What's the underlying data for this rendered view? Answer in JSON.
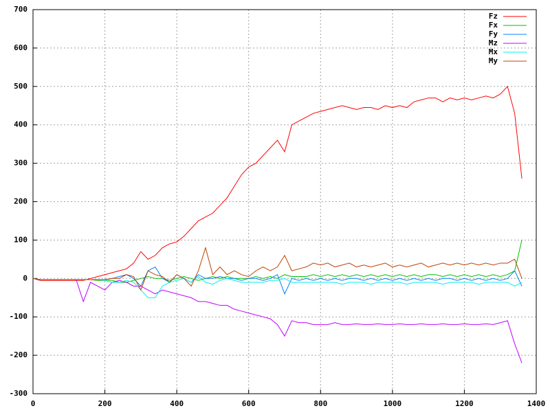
{
  "chart_data": {
    "type": "line",
    "x": [
      0,
      20,
      40,
      60,
      80,
      100,
      120,
      140,
      160,
      180,
      200,
      220,
      240,
      260,
      280,
      300,
      320,
      340,
      360,
      380,
      400,
      420,
      440,
      460,
      480,
      500,
      520,
      540,
      560,
      580,
      600,
      620,
      640,
      660,
      680,
      700,
      720,
      740,
      760,
      780,
      800,
      820,
      840,
      860,
      880,
      900,
      920,
      940,
      960,
      980,
      1000,
      1020,
      1040,
      1060,
      1080,
      1100,
      1120,
      1140,
      1160,
      1180,
      1200,
      1220,
      1240,
      1260,
      1280,
      1300,
      1320,
      1340,
      1360
    ],
    "series": [
      {
        "name": "Fz",
        "color": "#ff0000",
        "values": [
          0,
          -5,
          -5,
          -5,
          -5,
          -5,
          -5,
          -5,
          0,
          5,
          10,
          15,
          20,
          25,
          40,
          70,
          50,
          60,
          80,
          90,
          95,
          110,
          130,
          150,
          160,
          170,
          190,
          210,
          240,
          270,
          290,
          300,
          320,
          340,
          360,
          330,
          400,
          410,
          420,
          430,
          435,
          440,
          445,
          450,
          445,
          440,
          445,
          445,
          440,
          450,
          445,
          450,
          445,
          460,
          465,
          470,
          470,
          460,
          470,
          465,
          470,
          465,
          470,
          475,
          470,
          480,
          500,
          430,
          260
        ]
      },
      {
        "name": "Fx",
        "color": "#00c000",
        "values": [
          0,
          -3,
          -3,
          -3,
          -3,
          -3,
          -3,
          -3,
          -3,
          -5,
          -5,
          -5,
          -10,
          -10,
          -5,
          0,
          5,
          0,
          0,
          -5,
          0,
          5,
          0,
          -5,
          0,
          5,
          0,
          5,
          0,
          0,
          0,
          5,
          0,
          5,
          0,
          10,
          5,
          5,
          5,
          10,
          5,
          10,
          5,
          10,
          5,
          10,
          5,
          10,
          5,
          10,
          5,
          10,
          5,
          10,
          5,
          10,
          10,
          5,
          10,
          5,
          10,
          5,
          10,
          5,
          10,
          5,
          10,
          20,
          100
        ]
      },
      {
        "name": "Fy",
        "color": "#0080ff",
        "values": [
          0,
          -3,
          -3,
          -3,
          -3,
          -3,
          -3,
          -3,
          -3,
          -3,
          -3,
          0,
          5,
          10,
          0,
          -20,
          20,
          30,
          0,
          -10,
          10,
          0,
          -10,
          10,
          0,
          0,
          5,
          0,
          0,
          -5,
          0,
          0,
          -5,
          0,
          10,
          -40,
          0,
          -5,
          0,
          -5,
          0,
          -5,
          0,
          -5,
          0,
          0,
          -5,
          0,
          -5,
          0,
          -5,
          0,
          -5,
          0,
          -5,
          0,
          -5,
          0,
          0,
          -5,
          0,
          -5,
          0,
          -5,
          0,
          -5,
          0,
          20,
          -20
        ]
      },
      {
        "name": "Mz",
        "color": "#c000ff",
        "values": [
          0,
          -3,
          -3,
          -3,
          -3,
          -3,
          -3,
          -60,
          -10,
          -20,
          -30,
          -10,
          -5,
          -10,
          -20,
          -20,
          -30,
          -40,
          -30,
          -35,
          -40,
          -45,
          -50,
          -60,
          -60,
          -65,
          -70,
          -70,
          -80,
          -85,
          -90,
          -95,
          -100,
          -105,
          -120,
          -150,
          -110,
          -115,
          -115,
          -120,
          -120,
          -120,
          -115,
          -120,
          -120,
          -118,
          -120,
          -120,
          -118,
          -120,
          -120,
          -118,
          -120,
          -120,
          -118,
          -120,
          -120,
          -118,
          -120,
          -120,
          -118,
          -120,
          -120,
          -118,
          -120,
          -115,
          -110,
          -170,
          -220
        ]
      },
      {
        "name": "Mx",
        "color": "#00eeee",
        "values": [
          0,
          -3,
          -3,
          -3,
          -3,
          -3,
          -3,
          -3,
          -3,
          -3,
          -5,
          -10,
          -10,
          -5,
          -10,
          -30,
          -50,
          -50,
          -20,
          -10,
          -5,
          0,
          -10,
          5,
          -10,
          -15,
          -5,
          0,
          -5,
          -10,
          -10,
          -10,
          -10,
          -5,
          -5,
          0,
          -10,
          -10,
          -10,
          -10,
          -10,
          -10,
          -10,
          -15,
          -10,
          -10,
          -10,
          -15,
          -10,
          -10,
          -10,
          -10,
          -15,
          -10,
          -10,
          -10,
          -10,
          -15,
          -10,
          -10,
          -10,
          -10,
          -15,
          -10,
          -10,
          -10,
          -10,
          -20,
          -10
        ]
      },
      {
        "name": "My",
        "color": "#c04000",
        "values": [
          0,
          -3,
          -3,
          -3,
          -3,
          -3,
          -3,
          -3,
          -3,
          -3,
          -3,
          0,
          0,
          10,
          5,
          -30,
          20,
          10,
          5,
          -10,
          10,
          0,
          -20,
          20,
          80,
          10,
          30,
          10,
          20,
          10,
          5,
          20,
          30,
          20,
          30,
          60,
          20,
          25,
          30,
          40,
          35,
          40,
          30,
          35,
          40,
          30,
          35,
          30,
          35,
          40,
          30,
          35,
          30,
          35,
          40,
          30,
          35,
          40,
          35,
          40,
          35,
          40,
          35,
          40,
          35,
          40,
          40,
          50,
          0
        ]
      }
    ],
    "xlim": [
      0,
      1400
    ],
    "xticks": [
      0,
      200,
      400,
      600,
      800,
      1000,
      1200,
      1400
    ],
    "ylim": [
      -300,
      700
    ],
    "yticks": [
      -300,
      -200,
      -100,
      0,
      100,
      200,
      300,
      400,
      500,
      600,
      700
    ],
    "grid": true,
    "legend": "top-right"
  }
}
